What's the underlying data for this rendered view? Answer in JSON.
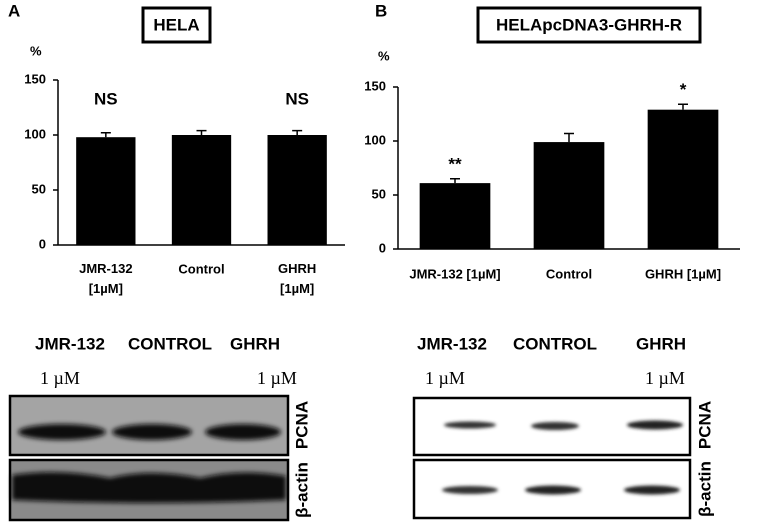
{
  "chart_data": [
    {
      "type": "bar",
      "panel": "A",
      "title": "HELA",
      "y_label": "%",
      "categories": [
        "JMR-132 [1µM]",
        "Control",
        "GHRH [1µM]"
      ],
      "values": [
        98,
        100,
        100
      ],
      "errors": [
        4,
        4,
        4
      ],
      "annotations": [
        "NS",
        null,
        "NS"
      ],
      "color": "#000000",
      "ylim": [
        0,
        150
      ],
      "yticks": [
        0,
        50,
        100,
        150
      ]
    },
    {
      "type": "bar",
      "panel": "B",
      "title": "HELApcDNA3-GHRH-R",
      "y_label": "%",
      "categories": [
        "JMR-132 [1µM]",
        "Control",
        "GHRH [1µM]"
      ],
      "values": [
        61,
        99,
        129
      ],
      "errors": [
        4,
        8,
        5
      ],
      "annotations": [
        "**",
        null,
        "*"
      ],
      "color": "#000000",
      "ylim": [
        0,
        150
      ],
      "yticks": [
        0,
        50,
        100,
        150
      ]
    }
  ],
  "blots": [
    {
      "columns": [
        {
          "name": "JMR-132",
          "dose": "1 µM"
        },
        {
          "name": "CONTROL"
        },
        {
          "name": "GHRH",
          "dose": "1 µM"
        }
      ],
      "bands": [
        "PCNA",
        "β-actin"
      ]
    },
    {
      "columns": [
        {
          "name": "JMR-132",
          "dose": "1 µM"
        },
        {
          "name": "CONTROL"
        },
        {
          "name": "GHRH",
          "dose": "1 µM"
        }
      ],
      "bands": [
        "PCNA",
        "β-actin"
      ]
    }
  ]
}
